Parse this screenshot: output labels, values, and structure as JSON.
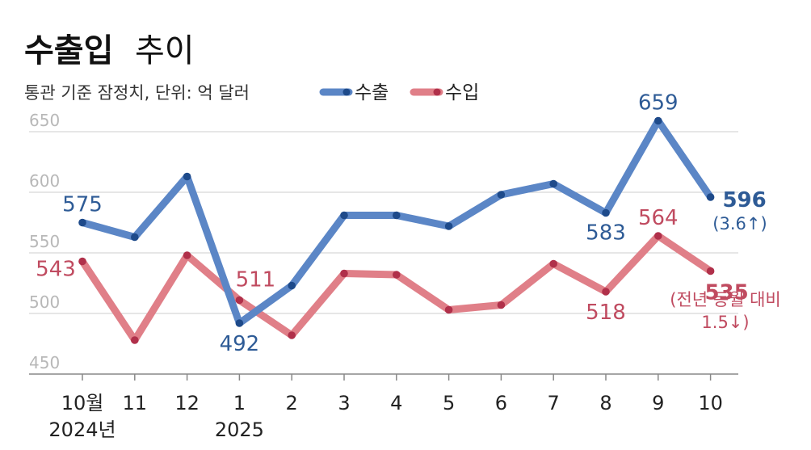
{
  "title": {
    "bold": "수출입",
    "light": "추이"
  },
  "subtitle": "통관 기준 잠정치, 단위: 억 달러",
  "colors": {
    "exports": "#5b86c6",
    "imports": "#e07f88",
    "exports_dark": "#2e5b96",
    "imports_dark": "#c04b60",
    "grid": "#cccccc",
    "axis": "#888888"
  },
  "chart_data": {
    "type": "line",
    "categories": [
      "10월",
      "11",
      "12",
      "1",
      "2",
      "3",
      "4",
      "5",
      "6",
      "7",
      "8",
      "9",
      "10"
    ],
    "category_sublabels": [
      "2024년",
      "",
      "",
      "2025",
      "",
      "",
      "",
      "",
      "",
      "",
      "",
      "",
      ""
    ],
    "ylim": [
      450,
      650
    ],
    "yticks": [
      450,
      500,
      550,
      600,
      650
    ],
    "grid": true,
    "legend_placement": "top-center",
    "series": [
      {
        "name": "수출",
        "values": [
          575,
          563,
          613,
          492,
          523,
          581,
          581,
          572,
          598,
          607,
          583,
          659,
          596
        ]
      },
      {
        "name": "수입",
        "values": [
          543,
          478,
          548,
          511,
          482,
          533,
          532,
          503,
          507,
          541,
          518,
          564,
          535
        ]
      }
    ],
    "data_labels": {
      "exports": [
        {
          "index": 0,
          "text": "575"
        },
        {
          "index": 3,
          "text": "492"
        },
        {
          "index": 10,
          "text": "583"
        },
        {
          "index": 11,
          "text": "659"
        },
        {
          "index": 12,
          "text": "596"
        }
      ],
      "imports": [
        {
          "index": 0,
          "text": "543"
        },
        {
          "index": 3,
          "text": "511"
        },
        {
          "index": 10,
          "text": "518"
        },
        {
          "index": 11,
          "text": "564"
        },
        {
          "index": 12,
          "text": "535"
        }
      ]
    },
    "annotations": {
      "exports": "(3.6↑)",
      "imports_line1": "(전년 동월 대비",
      "imports_line2": "1.5↓)"
    }
  }
}
